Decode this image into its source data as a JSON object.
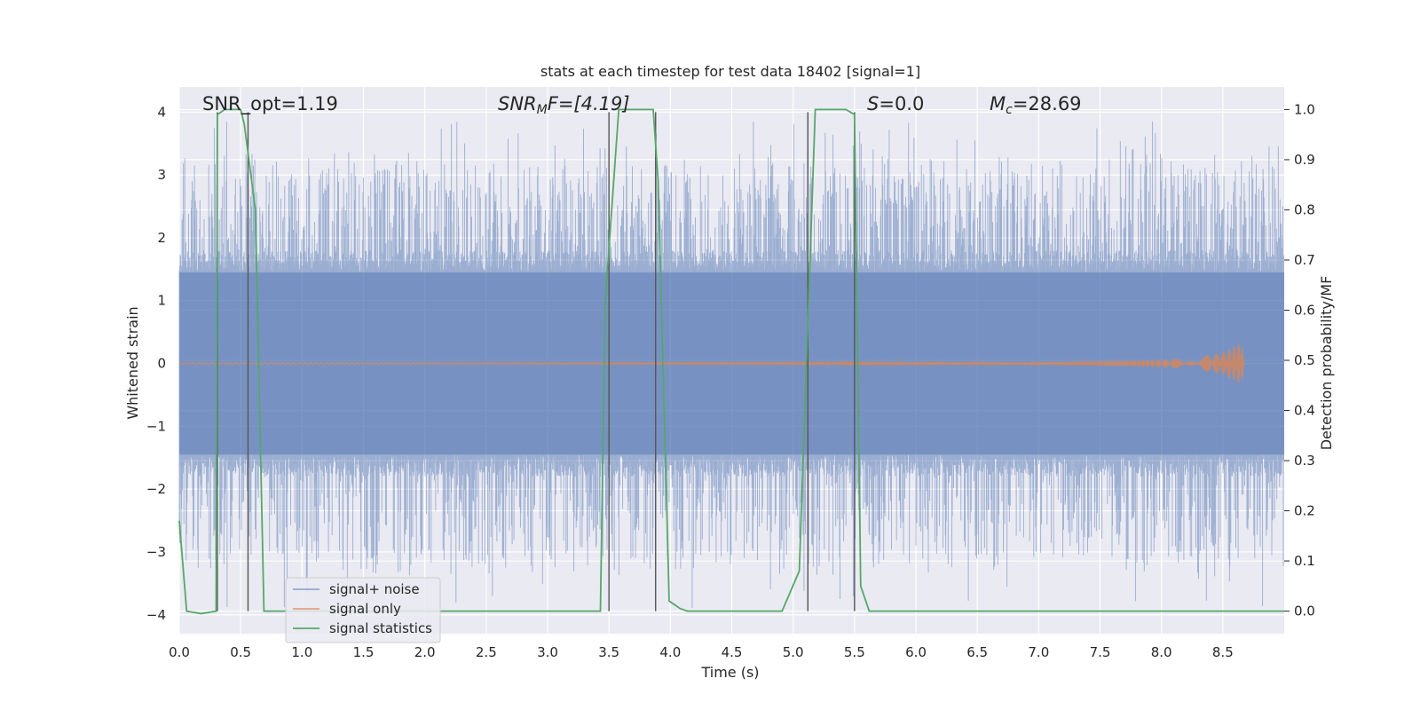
{
  "chart_data": {
    "type": "line",
    "title": "stats at each timestep for test data 18402 [signal=1]",
    "xlabel": "Time (s)",
    "ylabel_left": "Whitened strain",
    "ylabel_right": "Detection probability/MF",
    "xlim": [
      0.0,
      9.0
    ],
    "ylim_left": [
      -4.3,
      4.4
    ],
    "ylim_right": [
      -0.045,
      1.045
    ],
    "grid": true,
    "legend_placement": "lower-left",
    "x_ticks": [
      "0.0",
      "0.5",
      "1.0",
      "1.5",
      "2.0",
      "2.5",
      "3.0",
      "3.5",
      "4.0",
      "4.5",
      "5.0",
      "5.5",
      "6.0",
      "6.5",
      "7.0",
      "7.5",
      "8.0",
      "8.5"
    ],
    "y_ticks_left": [
      "−4",
      "−3",
      "−2",
      "−1",
      "0",
      "1",
      "2",
      "3",
      "4"
    ],
    "y_ticks_right": [
      "0.0",
      "0.1",
      "0.2",
      "0.3",
      "0.4",
      "0.5",
      "0.6",
      "0.7",
      "0.8",
      "0.9",
      "1.0"
    ],
    "annotations": {
      "snr_opt": "SNR_opt=1.19",
      "snr_mf_base": "SNR",
      "snr_mf_sub": "M",
      "snr_mf_rest": "F=[4.19]",
      "s_italic": "S",
      "s_rest": "=0.0",
      "mc_base": "M",
      "mc_sub": "c",
      "mc_rest": "=28.69"
    },
    "series": [
      {
        "name": "signal+ noise",
        "color": "#4c72b0",
        "description_level": "noise envelope approx ±1.6 with spikes to ±3.9"
      },
      {
        "name": "signal only",
        "color": "#dd8452",
        "x": [
          0.0,
          7.0,
          7.5,
          8.0,
          8.3,
          8.5,
          8.6,
          8.65,
          8.68
        ],
        "amplitude": [
          0.02,
          0.02,
          0.04,
          0.06,
          0.1,
          0.18,
          0.28,
          0.35,
          0.0
        ]
      },
      {
        "name": "signal statistics",
        "color": "#55a868",
        "axis": "right",
        "x": [
          0.0,
          0.06,
          0.18,
          0.3,
          0.31,
          0.37,
          0.5,
          0.53,
          0.62,
          0.69,
          3.43,
          3.47,
          3.58,
          3.86,
          3.9,
          3.99,
          4.08,
          4.14,
          4.91,
          5.05,
          5.18,
          5.43,
          5.5,
          5.55,
          5.62,
          6.0,
          9.0
        ],
        "values": [
          0.18,
          0.0,
          -0.005,
          0.0,
          0.99,
          1.0,
          1.0,
          0.97,
          0.8,
          0.0,
          0.0,
          0.62,
          1.0,
          1.0,
          0.86,
          0.02,
          0.005,
          0.0,
          0.0,
          0.08,
          1.0,
          1.0,
          0.99,
          0.05,
          0.0,
          0.0,
          0.0
        ]
      }
    ],
    "vertical_markers_x": [
      0.31,
      0.56,
      3.5,
      3.88,
      5.12,
      5.5
    ],
    "legend": [
      {
        "label": "signal+ noise",
        "color": "#4c72b0"
      },
      {
        "label": "signal only",
        "color": "#dd8452"
      },
      {
        "label": "signal statistics",
        "color": "#55a868"
      }
    ]
  }
}
